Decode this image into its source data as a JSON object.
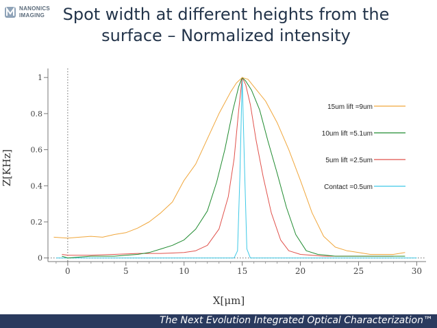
{
  "header": {
    "logo_line1": "NANONICS",
    "logo_line2": "IMAGING",
    "title_line1": "Spot width at different heights from the",
    "title_line2": "surface – Normalized intensity"
  },
  "footer": {
    "text": "The Next Evolution Integrated Optical Characterization™"
  },
  "colors": {
    "orange": "#f0a63a",
    "green": "#1e8a2e",
    "red": "#e0504a",
    "cyan": "#3cc8e6",
    "footer_bg": "#2a3a5e",
    "title": "#23344a"
  },
  "chart_data": {
    "type": "line",
    "title": "",
    "xlabel": "X[μm]",
    "ylabel": "Z[KHz]",
    "xlim": [
      -1.7,
      30.8
    ],
    "ylim": [
      -0.02,
      1.05
    ],
    "x_ticks": [
      0,
      5,
      10,
      15,
      20,
      25,
      30
    ],
    "y_ticks": [
      0,
      0.2,
      0.4,
      0.6,
      0.8,
      1
    ],
    "y_tick_labels": [
      "0",
      "0.2",
      "0.4",
      "0.6",
      "0.8",
      "1"
    ],
    "grid": false,
    "legend_position": "top-right",
    "series": [
      {
        "name": "15um lift =9um",
        "color": "#f0a63a",
        "points": [
          [
            -1.2,
            0.115
          ],
          [
            0,
            0.11
          ],
          [
            1,
            0.115
          ],
          [
            2,
            0.12
          ],
          [
            3,
            0.115
          ],
          [
            4,
            0.13
          ],
          [
            5,
            0.14
          ],
          [
            6,
            0.165
          ],
          [
            7,
            0.2
          ],
          [
            8,
            0.25
          ],
          [
            9,
            0.31
          ],
          [
            10,
            0.43
          ],
          [
            11,
            0.52
          ],
          [
            12,
            0.66
          ],
          [
            13,
            0.8
          ],
          [
            14,
            0.92
          ],
          [
            14.5,
            0.97
          ],
          [
            15,
            1.0
          ],
          [
            15.5,
            0.99
          ],
          [
            16,
            0.95
          ],
          [
            17,
            0.87
          ],
          [
            18,
            0.75
          ],
          [
            19,
            0.6
          ],
          [
            20,
            0.43
          ],
          [
            21,
            0.25
          ],
          [
            22,
            0.12
          ],
          [
            23,
            0.06
          ],
          [
            24,
            0.04
          ],
          [
            25,
            0.03
          ],
          [
            26,
            0.02
          ],
          [
            27,
            0.02
          ],
          [
            28,
            0.02
          ],
          [
            29,
            0.03
          ]
        ]
      },
      {
        "name": "10um lift =5.1um",
        "color": "#1e8a2e",
        "points": [
          [
            -0.5,
            0.01
          ],
          [
            0,
            0.0
          ],
          [
            1,
            0.005
          ],
          [
            2,
            0.01
          ],
          [
            3,
            0.01
          ],
          [
            4,
            0.01
          ],
          [
            5,
            0.015
          ],
          [
            6,
            0.02
          ],
          [
            7,
            0.03
          ],
          [
            8,
            0.05
          ],
          [
            9,
            0.07
          ],
          [
            10,
            0.1
          ],
          [
            11,
            0.16
          ],
          [
            12,
            0.26
          ],
          [
            12.8,
            0.42
          ],
          [
            13.5,
            0.6
          ],
          [
            14.2,
            0.82
          ],
          [
            14.7,
            0.95
          ],
          [
            15,
            1.0
          ],
          [
            15.3,
            0.98
          ],
          [
            15.8,
            0.93
          ],
          [
            16.5,
            0.82
          ],
          [
            17.2,
            0.65
          ],
          [
            18,
            0.47
          ],
          [
            18.8,
            0.28
          ],
          [
            19.6,
            0.13
          ],
          [
            20.5,
            0.04
          ],
          [
            21.5,
            0.02
          ],
          [
            23,
            0.01
          ],
          [
            25,
            0.01
          ],
          [
            27,
            0.01
          ],
          [
            29,
            0.01
          ]
        ]
      },
      {
        "name": "5um lift =2.5um",
        "color": "#e0504a",
        "points": [
          [
            -0.5,
            0.02
          ],
          [
            0,
            0.015
          ],
          [
            2,
            0.015
          ],
          [
            4,
            0.02
          ],
          [
            6,
            0.025
          ],
          [
            8,
            0.025
          ],
          [
            10,
            0.03
          ],
          [
            11,
            0.04
          ],
          [
            12,
            0.07
          ],
          [
            13,
            0.16
          ],
          [
            13.8,
            0.34
          ],
          [
            14.3,
            0.55
          ],
          [
            14.7,
            0.82
          ],
          [
            15,
            1.0
          ],
          [
            15.3,
            0.96
          ],
          [
            15.7,
            0.85
          ],
          [
            16.2,
            0.65
          ],
          [
            16.8,
            0.45
          ],
          [
            17.5,
            0.25
          ],
          [
            18.3,
            0.1
          ],
          [
            19,
            0.04
          ],
          [
            20,
            0.02
          ],
          [
            22,
            0.01
          ],
          [
            25,
            0.01
          ],
          [
            28,
            0.01
          ]
        ]
      },
      {
        "name": "Contact =0.5um",
        "color": "#3cc8e6",
        "points": [
          [
            -1,
            0.0
          ],
          [
            5,
            0.0
          ],
          [
            10,
            0.0
          ],
          [
            14.3,
            0.0
          ],
          [
            14.6,
            0.04
          ],
          [
            14.8,
            0.45
          ],
          [
            15,
            1.0
          ],
          [
            15.2,
            0.5
          ],
          [
            15.4,
            0.05
          ],
          [
            15.7,
            0.0
          ],
          [
            20,
            0.0
          ],
          [
            25,
            0.0
          ],
          [
            30,
            0.0
          ]
        ]
      }
    ]
  }
}
